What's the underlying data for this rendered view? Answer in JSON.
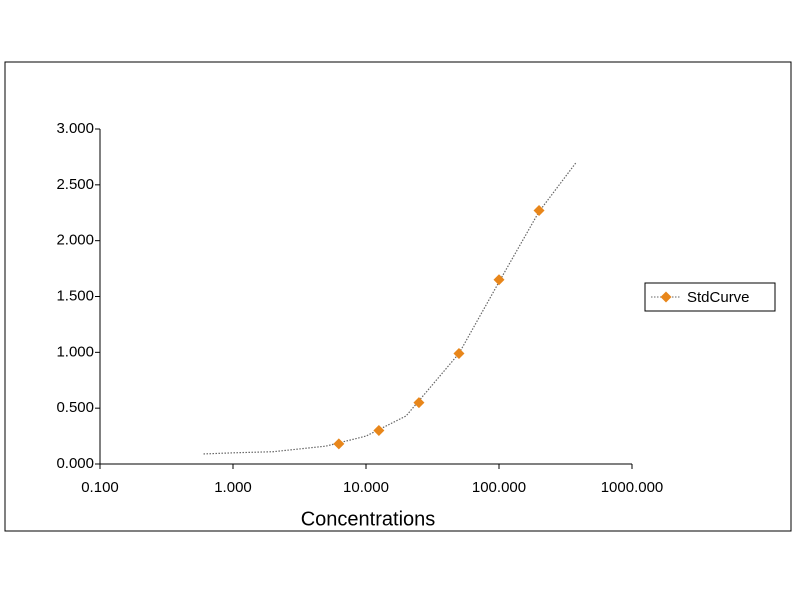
{
  "chart_data": {
    "type": "scatter",
    "xlabel": "Concentrations",
    "xscale": "log",
    "xlim": [
      0.1,
      1000
    ],
    "ylim": [
      0,
      3
    ],
    "xticks": [
      {
        "value": 0.1,
        "label": "0.100"
      },
      {
        "value": 1,
        "label": "1.000"
      },
      {
        "value": 10,
        "label": "10.000"
      },
      {
        "value": 100,
        "label": "100.000"
      },
      {
        "value": 1000,
        "label": "1000.000"
      }
    ],
    "yticks": [
      {
        "value": 0,
        "label": "0.000"
      },
      {
        "value": 0.5,
        "label": "0.500"
      },
      {
        "value": 1,
        "label": "1.000"
      },
      {
        "value": 1.5,
        "label": "1.500"
      },
      {
        "value": 2,
        "label": "2.000"
      },
      {
        "value": 2.5,
        "label": "2.500"
      },
      {
        "value": 3,
        "label": "3.000"
      }
    ],
    "legend": "right",
    "series": [
      {
        "name": "StdCurve",
        "color": "#e8861a",
        "x": [
          6.25,
          12.5,
          25,
          50,
          100,
          200
        ],
        "values": [
          0.18,
          0.3,
          0.55,
          0.99,
          1.65,
          2.27
        ]
      }
    ],
    "curve": {
      "color": "#666666",
      "x": [
        0.6,
        1,
        2,
        5,
        10,
        20,
        50,
        100,
        200,
        380
      ],
      "values": [
        0.09,
        0.1,
        0.11,
        0.16,
        0.25,
        0.43,
        0.99,
        1.63,
        2.26,
        2.7
      ]
    }
  }
}
